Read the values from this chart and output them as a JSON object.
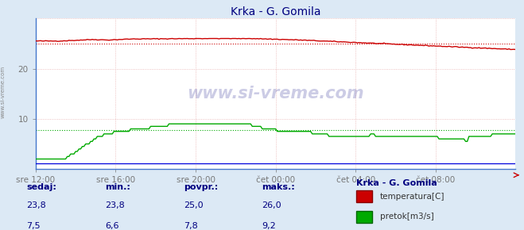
{
  "title": "Krka - G. Gomila",
  "bg_color": "#dce9f5",
  "plot_bg_color": "#ffffff",
  "x_labels": [
    "sre 12:00",
    "sre 16:00",
    "sre 20:00",
    "čet 00:00",
    "čet 04:00",
    "čet 08:00"
  ],
  "x_ticks_norm": [
    0.0,
    0.1667,
    0.3333,
    0.5,
    0.6667,
    0.8333
  ],
  "ylim": [
    0,
    30
  ],
  "yticks": [
    10,
    20
  ],
  "temp_avg": 25.0,
  "flow_avg": 7.8,
  "temp_color": "#cc0000",
  "flow_color": "#00aa00",
  "blue_color": "#0000dd",
  "watermark": "www.si-vreme.com",
  "legend_title": "Krka - G. Gomila",
  "label_temp": "temperatura[C]",
  "label_flow": "pretok[m3/s]",
  "sedaj_label": "sedaj:",
  "min_label": "min.:",
  "povpr_label": "povpr.:",
  "maks_label": "maks.:",
  "sedaj_temp": "23,8",
  "min_temp": "23,8",
  "povpr_temp": "25,0",
  "maks_temp": "26,0",
  "sedaj_flow": "7,5",
  "min_flow": "6,6",
  "povpr_flow": "7,8",
  "maks_flow": "9,2",
  "grid_pink": "#e8b0b0",
  "grid_pink_h": "#e8b0b0"
}
